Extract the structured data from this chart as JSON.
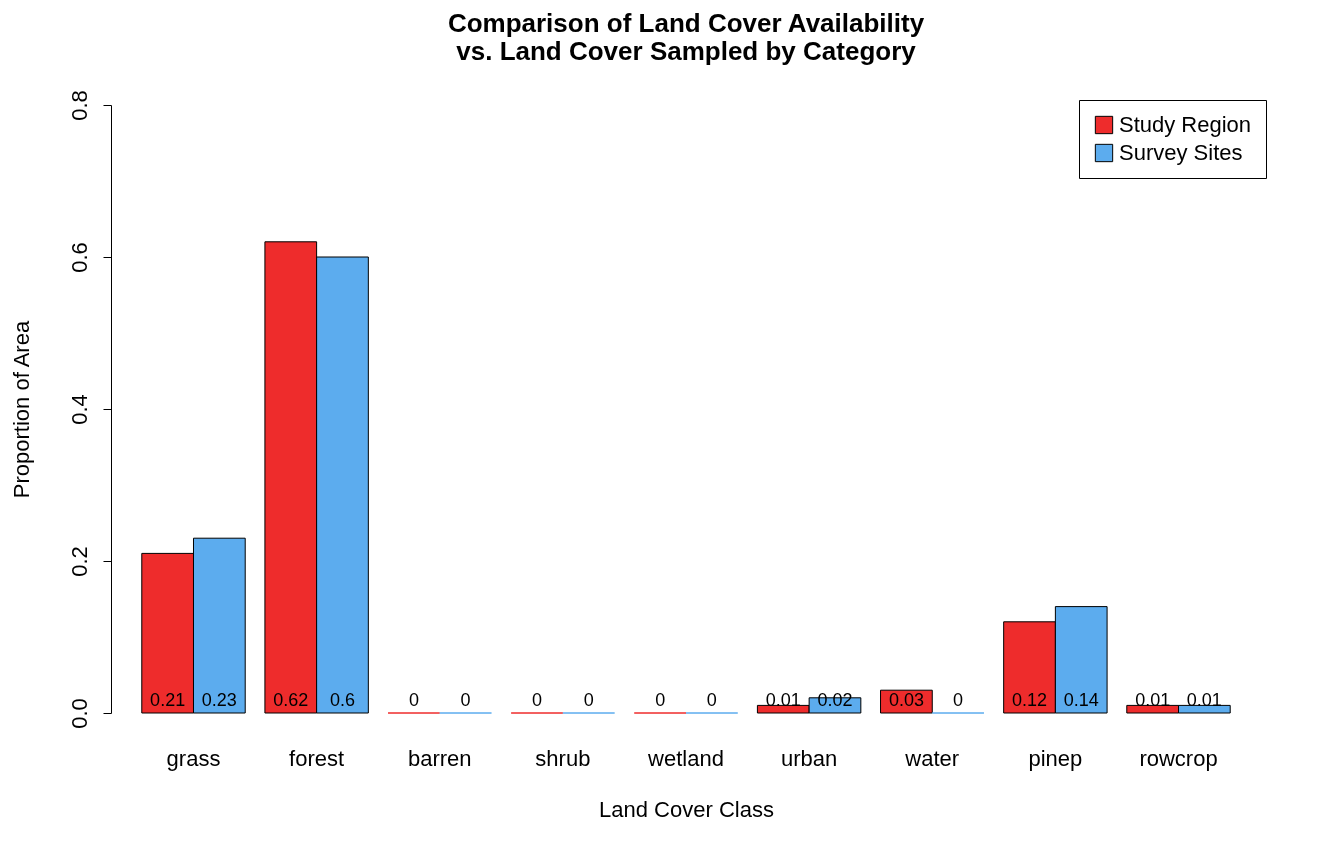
{
  "chart_data": {
    "type": "bar",
    "title": "Comparison of Land Cover Availability\n     vs. Land Cover Sampled by Category",
    "xlabel": "Land Cover Class",
    "ylabel": "Proportion of Area",
    "categories": [
      "grass",
      "forest",
      "barren",
      "shrub",
      "wetland",
      "urban",
      "water",
      "pinep",
      "rowcrop"
    ],
    "series": [
      {
        "name": "Study Region",
        "color": "#ee2c2c",
        "values": [
          0.21,
          0.62,
          0,
          0,
          0,
          0.01,
          0.03,
          0.12,
          0.01
        ]
      },
      {
        "name": "Survey Sites",
        "color": "#5cacee",
        "values": [
          0.23,
          0.6,
          0,
          0,
          0,
          0.02,
          0,
          0.14,
          0.01
        ]
      }
    ],
    "ylim": [
      0,
      0.8
    ],
    "yticks": [
      {
        "value": 0,
        "label": "0.0"
      },
      0.2,
      0.4,
      0.6,
      0.8
    ],
    "data_labels": true,
    "legend": "top right"
  }
}
